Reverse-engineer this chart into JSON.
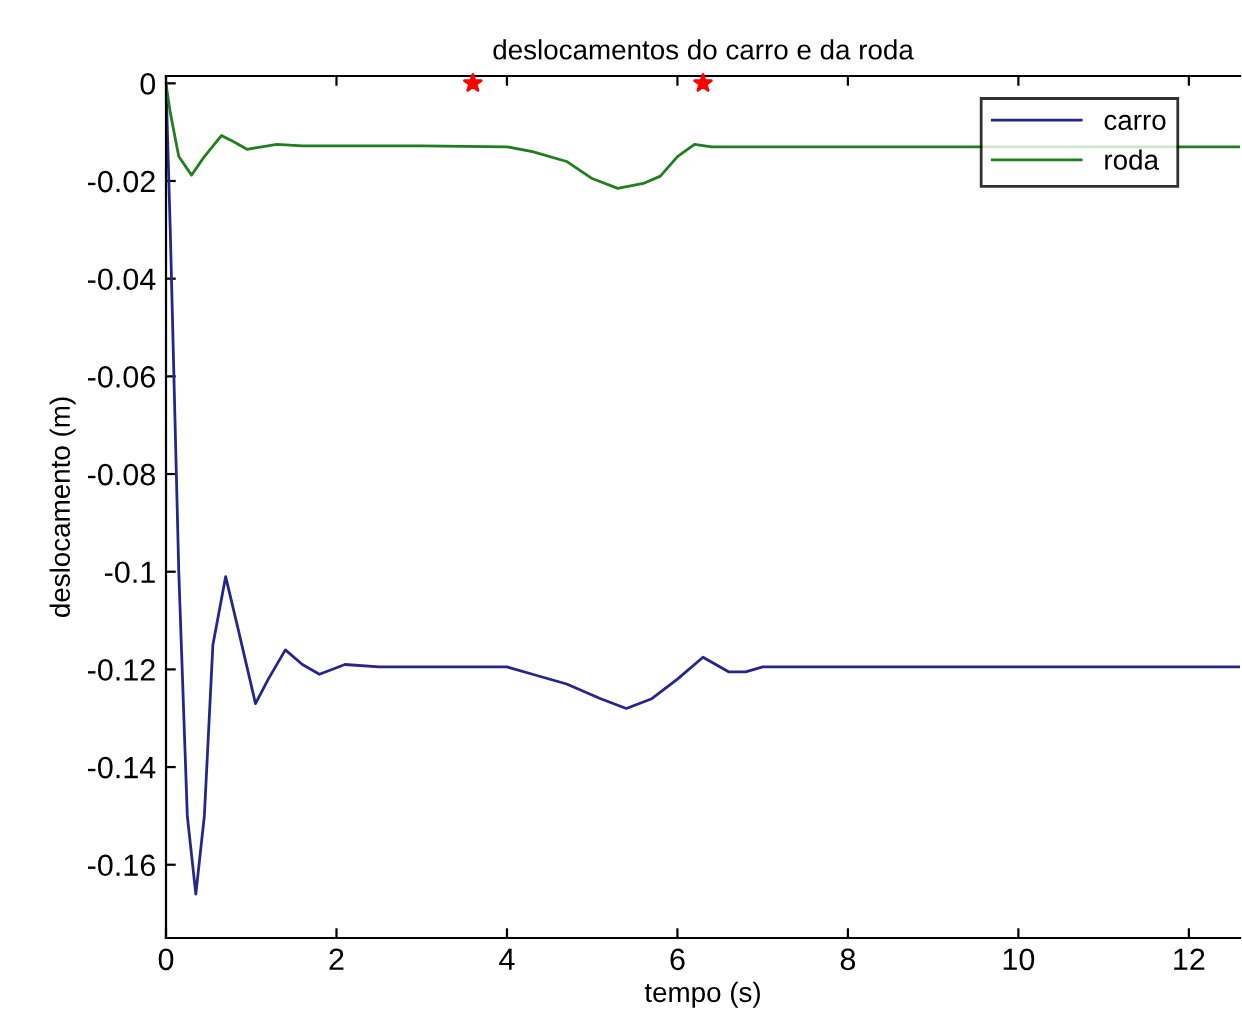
{
  "chart_data": {
    "type": "line",
    "title": "deslocamentos do carro e da roda",
    "xlabel": "tempo (s)",
    "ylabel": "deslocamento (m)",
    "xlim": [
      0,
      12.6
    ],
    "ylim": [
      -0.175,
      0.0015
    ],
    "xticks": [
      0,
      2,
      4,
      6,
      8,
      10,
      12
    ],
    "yticks": [
      0,
      -0.02,
      -0.04,
      -0.06,
      -0.08,
      -0.1,
      -0.12,
      -0.14,
      -0.16
    ],
    "grid": false,
    "legend": "top right",
    "line_style": "solid",
    "marker": "none",
    "series": [
      {
        "name": "carro",
        "color": "#26268a",
        "x": [
          0,
          0.05,
          0.15,
          0.25,
          0.35,
          0.45,
          0.55,
          0.7,
          0.85,
          1.05,
          1.2,
          1.4,
          1.6,
          1.8,
          2.1,
          2.5,
          3,
          4,
          4.3,
          4.7,
          5.1,
          5.4,
          5.7,
          6.0,
          6.3,
          6.6,
          6.8,
          7.0,
          8,
          10,
          12.6
        ],
        "values": [
          0,
          -0.03,
          -0.1,
          -0.15,
          -0.166,
          -0.15,
          -0.115,
          -0.101,
          -0.112,
          -0.127,
          -0.122,
          -0.116,
          -0.119,
          -0.121,
          -0.119,
          -0.1195,
          -0.1195,
          -0.1195,
          -0.121,
          -0.123,
          -0.126,
          -0.128,
          -0.126,
          -0.122,
          -0.1175,
          -0.1205,
          -0.1205,
          -0.1195,
          -0.1195,
          -0.1195,
          -0.1195
        ]
      },
      {
        "name": "roda",
        "color": "#1f7f1f",
        "x": [
          0,
          0.05,
          0.15,
          0.3,
          0.45,
          0.65,
          0.8,
          0.95,
          1.3,
          1.6,
          2,
          3,
          4,
          4.3,
          4.7,
          5.0,
          5.3,
          5.6,
          5.8,
          6.0,
          6.2,
          6.4,
          7,
          8,
          12.6
        ],
        "values": [
          0,
          -0.006,
          -0.015,
          -0.0188,
          -0.015,
          -0.0107,
          -0.012,
          -0.0135,
          -0.0125,
          -0.0128,
          -0.0128,
          -0.0128,
          -0.013,
          -0.014,
          -0.016,
          -0.0195,
          -0.0215,
          -0.0205,
          -0.019,
          -0.015,
          -0.0125,
          -0.013,
          -0.013,
          -0.013,
          -0.013
        ]
      },
      {
        "type": "scatter",
        "color": "#ff0000",
        "marker": "star",
        "x": [
          3.6,
          6.3
        ],
        "values": [
          0,
          0
        ]
      }
    ]
  }
}
